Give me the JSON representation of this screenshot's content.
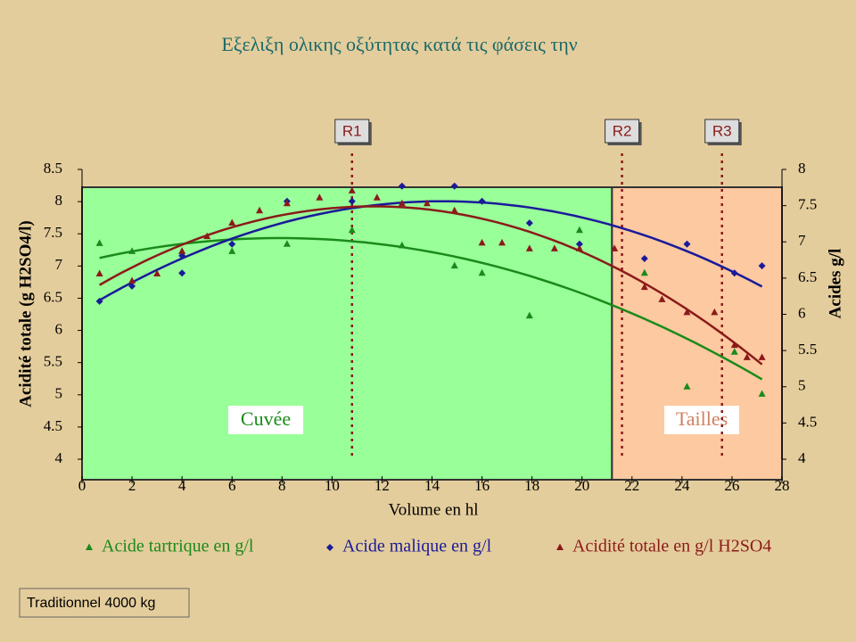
{
  "chart_data": {
    "type": "scatter",
    "title": "Εξελιξη ολικης οξύτητας κατά τις φάσεις την",
    "xlabel": "Volume en hl",
    "ylabel": "Acidité totale (g H2SO4/l)",
    "y2label": "Acides g/l",
    "note": "Traditionnel 4000 kg",
    "xlim": [
      0,
      28
    ],
    "xticks": [
      0,
      2,
      4,
      6,
      8,
      10,
      12,
      14,
      16,
      18,
      20,
      22,
      24,
      26,
      28
    ],
    "ylim": [
      4,
      8.5
    ],
    "yticks": [
      4,
      4.5,
      5,
      5.5,
      6,
      6.5,
      7,
      7.5,
      8,
      8.5
    ],
    "y2lim": [
      4,
      8
    ],
    "y2ticks": [
      4,
      4.5,
      5,
      5.5,
      6,
      6.5,
      7,
      7.5,
      8
    ],
    "trendline": "poly2",
    "regions": [
      {
        "label": "Cuvée",
        "from": 0,
        "to": 21.2,
        "color": "#99ff99"
      },
      {
        "label": "Tailles",
        "from": 21.2,
        "to": 28,
        "color": "#fcc9a0"
      }
    ],
    "phases": [
      {
        "label": "R1",
        "x": 10.8
      },
      {
        "label": "R2",
        "x": 21.6
      },
      {
        "label": "R3",
        "x": 25.6
      }
    ],
    "series": [
      {
        "name": "Acide tartrique en g/l",
        "color": "#1a8a1a",
        "marker": "triangle",
        "axis": "y2",
        "x": [
          0.7,
          2,
          4,
          6,
          8.2,
          10.8,
          12.8,
          14.9,
          16,
          17.9,
          19.9,
          22.5,
          24.2,
          26.1,
          27.2
        ],
        "values": [
          6.98,
          6.87,
          6.87,
          6.87,
          6.97,
          7.16,
          6.95,
          6.67,
          6.57,
          5.98,
          7.16,
          6.57,
          5.0,
          5.48,
          4.9
        ]
      },
      {
        "name": "Acide malique en g/l",
        "color": "#1a1a9a",
        "marker": "diamond",
        "axis": "y2",
        "x": [
          0.7,
          2,
          4,
          4,
          6,
          8.2,
          10.8,
          12.8,
          14.9,
          16,
          17.9,
          19.9,
          22.5,
          24.2,
          26.1,
          27.2
        ],
        "values": [
          6.18,
          6.39,
          6.81,
          6.57,
          6.97,
          7.56,
          7.56,
          7.77,
          7.77,
          7.56,
          7.26,
          6.97,
          6.77,
          6.97,
          6.57,
          6.67
        ]
      },
      {
        "name": "Acidité totale en g/l H2SO4",
        "color": "#8b1a1a",
        "marker": "triangle",
        "axis": "y",
        "x": [
          0.7,
          2,
          3,
          4,
          5,
          6,
          7.1,
          8.2,
          9.5,
          10.8,
          11.8,
          12.8,
          13.8,
          14.9,
          16,
          16.8,
          17.9,
          18.9,
          19.9,
          21.3,
          22.5,
          23.2,
          24.2,
          25.3,
          26.1,
          26.6,
          27.2
        ],
        "values": [
          6.88,
          6.77,
          6.88,
          7.23,
          7.46,
          7.67,
          7.86,
          7.97,
          8.06,
          8.17,
          8.06,
          7.97,
          7.97,
          7.86,
          7.36,
          7.36,
          7.27,
          7.27,
          7.27,
          7.27,
          6.67,
          6.48,
          6.28,
          6.28,
          5.77,
          5.58,
          5.58
        ]
      }
    ]
  }
}
